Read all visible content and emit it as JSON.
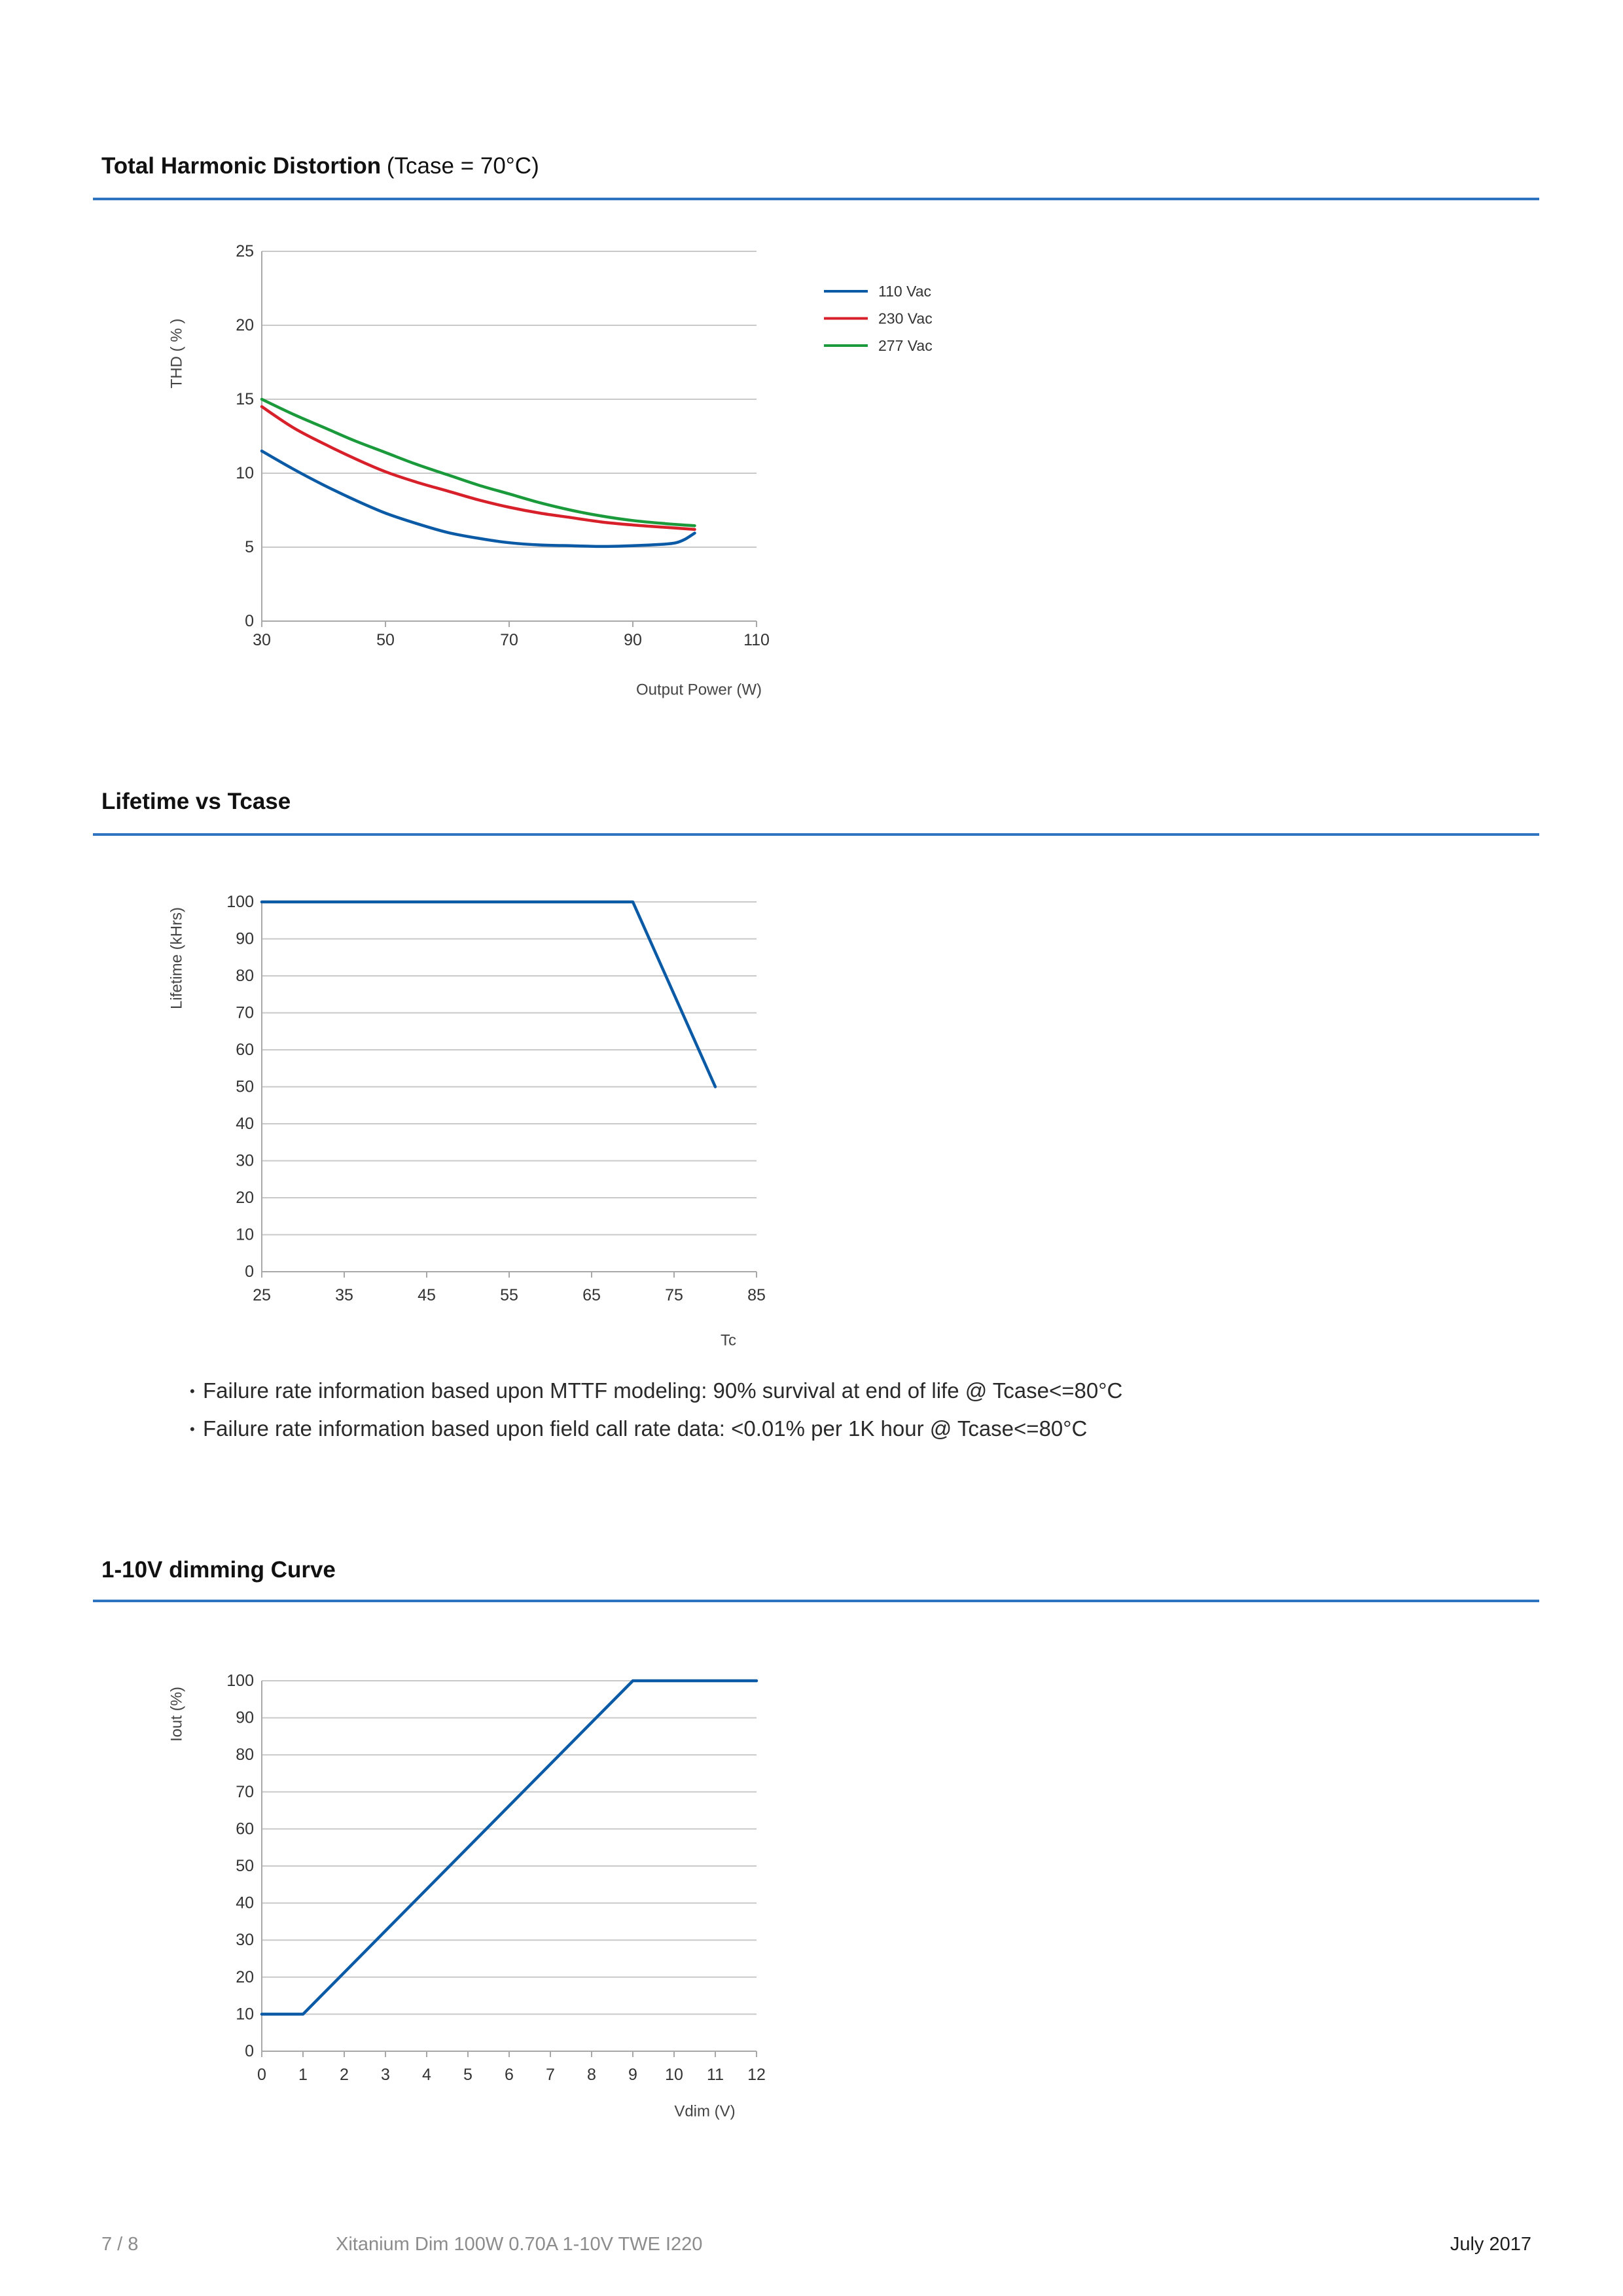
{
  "colors": {
    "accent": "#2e74c0"
  },
  "notes": [
    "Failure rate information based upon MTTF modeling: 90% survival at end of life @ Tcase<=80°C",
    "Failure rate information based upon field call rate data: <0.01% per 1K hour @ Tcase<=80°C"
  ],
  "page": {
    "number": "7 / 8",
    "product": "Xitanium Dim 100W 0.70A 1-10V TWE I220",
    "date": "July 2017"
  },
  "chart_data": [
    {
      "type": "line",
      "title": "Total Harmonic Distortion",
      "subtitle": "(Tcase = 70°C)",
      "xlabel": "Output Power (W)",
      "ylabel": "THD ( % )",
      "xlim": [
        30,
        110
      ],
      "ylim": [
        0,
        25
      ],
      "xticks": [
        30,
        50,
        70,
        90,
        110
      ],
      "yticks": [
        0,
        5,
        10,
        15,
        20,
        25
      ],
      "grid": true,
      "legend": "right",
      "series": [
        {
          "name": "110 Vac",
          "color": "#0b5aa6",
          "x": [
            30,
            35,
            40,
            45,
            50,
            55,
            60,
            65,
            70,
            75,
            80,
            85,
            90,
            95,
            97,
            98.5,
            100
          ],
          "y": [
            11.5,
            10.3,
            9.2,
            8.2,
            7.3,
            6.6,
            6.0,
            5.6,
            5.3,
            5.15,
            5.1,
            5.05,
            5.1,
            5.2,
            5.3,
            5.55,
            5.95
          ]
        },
        {
          "name": "230 Vac",
          "color": "#d7202a",
          "x": [
            30,
            35,
            40,
            45,
            50,
            55,
            60,
            65,
            70,
            75,
            80,
            85,
            90,
            95,
            100
          ],
          "y": [
            14.5,
            13.1,
            12.0,
            11.0,
            10.1,
            9.4,
            8.8,
            8.2,
            7.7,
            7.3,
            7.0,
            6.7,
            6.5,
            6.35,
            6.2
          ]
        },
        {
          "name": "277 Vac",
          "color": "#1b9a3c",
          "x": [
            30,
            35,
            40,
            45,
            50,
            55,
            60,
            65,
            70,
            75,
            80,
            85,
            90,
            95,
            100
          ],
          "y": [
            15.0,
            14.0,
            13.1,
            12.2,
            11.4,
            10.6,
            9.9,
            9.2,
            8.6,
            8.0,
            7.5,
            7.1,
            6.8,
            6.6,
            6.45
          ]
        }
      ]
    },
    {
      "type": "line",
      "title": "Lifetime vs Tcase",
      "xlabel": "Tc",
      "ylabel": "Lifetime (kHrs)",
      "xlim": [
        25,
        85
      ],
      "ylim": [
        0,
        100
      ],
      "xticks": [
        25,
        35,
        45,
        55,
        65,
        75,
        85
      ],
      "yticks": [
        0,
        10,
        20,
        30,
        40,
        50,
        60,
        70,
        80,
        90,
        100
      ],
      "grid": true,
      "series": [
        {
          "color": "#0b5aa6",
          "x": [
            25,
            70,
            80
          ],
          "y": [
            100,
            100,
            50
          ]
        }
      ]
    },
    {
      "type": "line",
      "title": "1-10V dimming Curve",
      "xlabel": "Vdim (V)",
      "ylabel": "Iout (%)",
      "xlim": [
        0,
        12
      ],
      "ylim": [
        0,
        100
      ],
      "xticks": [
        0,
        1,
        2,
        3,
        4,
        5,
        6,
        7,
        8,
        9,
        10,
        11,
        12
      ],
      "yticks": [
        0,
        10,
        20,
        30,
        40,
        50,
        60,
        70,
        80,
        90,
        100
      ],
      "grid": true,
      "series": [
        {
          "color": "#0b5aa6",
          "x": [
            0,
            1,
            9,
            12
          ],
          "y": [
            10,
            10,
            100,
            100
          ]
        }
      ]
    }
  ]
}
